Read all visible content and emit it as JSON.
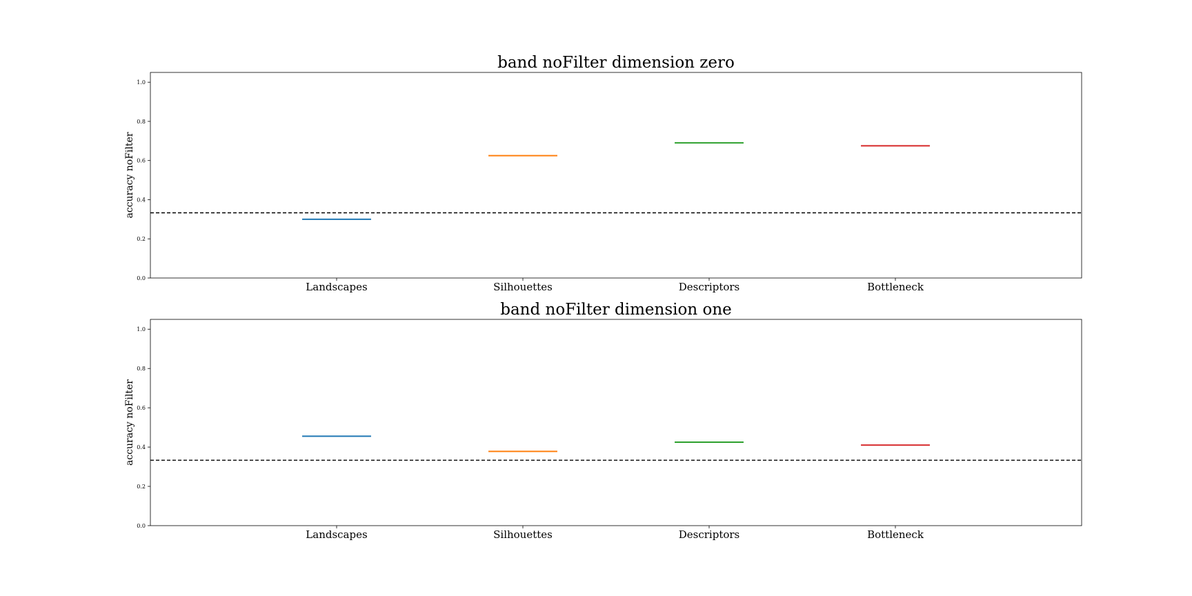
{
  "chart_data": [
    {
      "type": "line",
      "title": "band noFilter dimension zero",
      "ylabel": "accuracy noFilter",
      "xlabel": "",
      "categories": [
        "Landscapes",
        "Silhouettes",
        "Descriptors",
        "Bottleneck"
      ],
      "values": [
        0.3,
        0.625,
        0.69,
        0.675
      ],
      "colors": [
        "#1f77b4",
        "#ff7f0e",
        "#2ca02c",
        "#d62728"
      ],
      "ylim": [
        0.0,
        1.05
      ],
      "yticks": [
        0.0,
        0.2,
        0.4,
        0.6,
        0.8,
        1.0
      ],
      "ytick_labels": [
        "0.0",
        "0.2",
        "0.4",
        "0.6",
        "0.8",
        "1.0"
      ],
      "baseline": 0.333,
      "baseline_style": "dashed",
      "grid": false
    },
    {
      "type": "line",
      "title": "band noFilter dimension one",
      "ylabel": "accuracy noFilter",
      "xlabel": "",
      "categories": [
        "Landscapes",
        "Silhouettes",
        "Descriptors",
        "Bottleneck"
      ],
      "values": [
        0.455,
        0.378,
        0.425,
        0.41
      ],
      "colors": [
        "#1f77b4",
        "#ff7f0e",
        "#2ca02c",
        "#d62728"
      ],
      "ylim": [
        0.0,
        1.05
      ],
      "yticks": [
        0.0,
        0.2,
        0.4,
        0.6,
        0.8,
        1.0
      ],
      "ytick_labels": [
        "0.0",
        "0.2",
        "0.4",
        "0.6",
        "0.8",
        "1.0"
      ],
      "baseline": 0.333,
      "baseline_style": "dashed",
      "grid": false
    }
  ]
}
